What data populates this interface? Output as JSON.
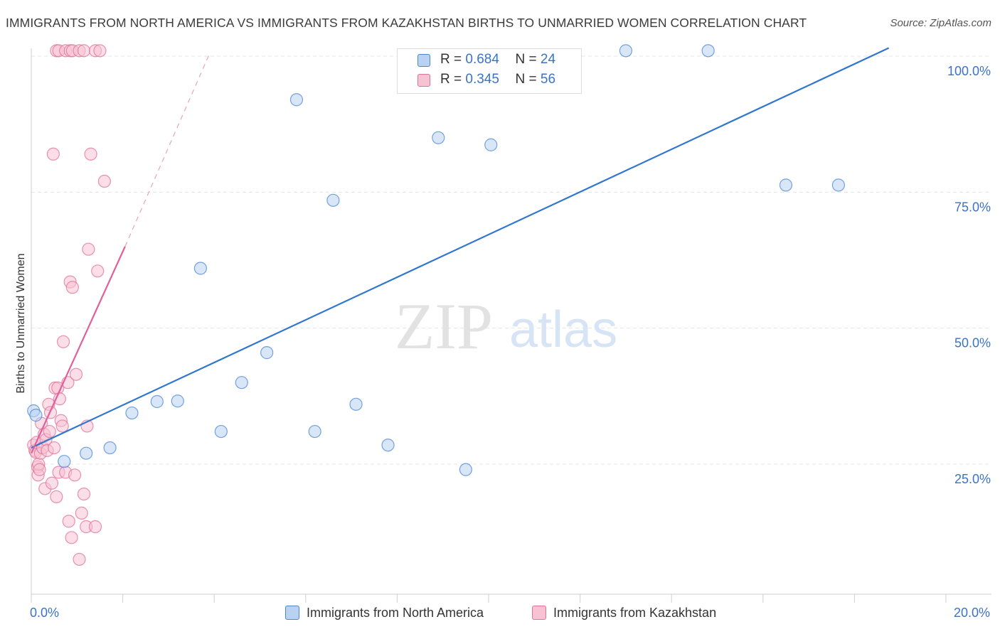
{
  "chart_data": {
    "type": "scatter",
    "title": "IMMIGRANTS FROM NORTH AMERICA VS IMMIGRANTS FROM KAZAKHSTAN BIRTHS TO UNMARRIED WOMEN CORRELATION CHART",
    "source": "Source: ZipAtlas.com",
    "xlabel": "",
    "ylabel": "Births to Unmarried Women",
    "xlim": [
      0,
      20
    ],
    "ylim": [
      0,
      102
    ],
    "x_tick_labels": {
      "min": "0.0%",
      "max": "20.0%"
    },
    "y_ticks": [
      {
        "value": 25,
        "label": "25.0%"
      },
      {
        "value": 50,
        "label": "50.0%"
      },
      {
        "value": 75,
        "label": "75.0%"
      },
      {
        "value": 100,
        "label": "100.0%"
      }
    ],
    "grid": true,
    "watermark": {
      "part1": "ZIP",
      "part2": "atlas"
    },
    "legend_position": "top-center",
    "series": [
      {
        "name": "Immigrants from North America",
        "color": "#4a86d6",
        "fill": "#b9d2f3",
        "r_label": "R =",
        "r_value": "0.684",
        "n_label": "N =",
        "n_value": "24",
        "points": [
          {
            "x": 0.05,
            "y": 34.8
          },
          {
            "x": 0.1,
            "y": 34.0
          },
          {
            "x": 0.72,
            "y": 25.5
          },
          {
            "x": 1.2,
            "y": 27.0
          },
          {
            "x": 1.72,
            "y": 28.0
          },
          {
            "x": 2.2,
            "y": 34.4
          },
          {
            "x": 2.75,
            "y": 36.5
          },
          {
            "x": 3.2,
            "y": 36.6
          },
          {
            "x": 3.7,
            "y": 61.0
          },
          {
            "x": 4.15,
            "y": 31.0
          },
          {
            "x": 4.6,
            "y": 40.0
          },
          {
            "x": 5.15,
            "y": 45.5
          },
          {
            "x": 5.8,
            "y": 92.0
          },
          {
            "x": 6.2,
            "y": 31.0
          },
          {
            "x": 6.6,
            "y": 73.5
          },
          {
            "x": 7.1,
            "y": 36.0
          },
          {
            "x": 7.8,
            "y": 28.5
          },
          {
            "x": 8.9,
            "y": 85.0
          },
          {
            "x": 9.5,
            "y": 24.0
          },
          {
            "x": 10.05,
            "y": 83.7
          },
          {
            "x": 13.0,
            "y": 101.0
          },
          {
            "x": 14.8,
            "y": 101.0
          },
          {
            "x": 16.5,
            "y": 76.3
          },
          {
            "x": 17.65,
            "y": 76.3
          }
        ],
        "trend": {
          "x1": 0.0,
          "y1": 28.0,
          "x2": 18.75,
          "y2": 101.5
        }
      },
      {
        "name": "Immigrants from Kazakhstan",
        "color": "#e0709a",
        "fill": "#f7c3d3",
        "r_label": "R =",
        "r_value": "0.345",
        "n_label": "N =",
        "n_value": "56",
        "points": [
          {
            "x": 0.05,
            "y": 28.5
          },
          {
            "x": 0.08,
            "y": 27.5
          },
          {
            "x": 0.1,
            "y": 27.2
          },
          {
            "x": 0.12,
            "y": 29.0
          },
          {
            "x": 0.14,
            "y": 24.5
          },
          {
            "x": 0.15,
            "y": 23.0
          },
          {
            "x": 0.16,
            "y": 25.0
          },
          {
            "x": 0.18,
            "y": 24.0
          },
          {
            "x": 0.2,
            "y": 27.0
          },
          {
            "x": 0.22,
            "y": 32.5
          },
          {
            "x": 0.25,
            "y": 28.0
          },
          {
            "x": 0.28,
            "y": 30.5
          },
          {
            "x": 0.3,
            "y": 20.5
          },
          {
            "x": 0.32,
            "y": 29.5
          },
          {
            "x": 0.35,
            "y": 27.5
          },
          {
            "x": 0.38,
            "y": 36.0
          },
          {
            "x": 0.4,
            "y": 31.0
          },
          {
            "x": 0.42,
            "y": 34.5
          },
          {
            "x": 0.45,
            "y": 21.5
          },
          {
            "x": 0.48,
            "y": 82.0
          },
          {
            "x": 0.5,
            "y": 28.0
          },
          {
            "x": 0.52,
            "y": 39.0
          },
          {
            "x": 0.55,
            "y": 19.0
          },
          {
            "x": 0.58,
            "y": 39.0
          },
          {
            "x": 0.6,
            "y": 23.5
          },
          {
            "x": 0.62,
            "y": 37.0
          },
          {
            "x": 0.65,
            "y": 33.0
          },
          {
            "x": 0.68,
            "y": 32.0
          },
          {
            "x": 0.7,
            "y": 47.5
          },
          {
            "x": 0.75,
            "y": 23.5
          },
          {
            "x": 0.8,
            "y": 40.0
          },
          {
            "x": 0.82,
            "y": 14.5
          },
          {
            "x": 0.85,
            "y": 58.5
          },
          {
            "x": 0.88,
            "y": 11.5
          },
          {
            "x": 0.9,
            "y": 57.5
          },
          {
            "x": 0.95,
            "y": 23.0
          },
          {
            "x": 0.98,
            "y": 41.5
          },
          {
            "x": 0.55,
            "y": 101.0
          },
          {
            "x": 0.6,
            "y": 101.0
          },
          {
            "x": 0.75,
            "y": 101.0
          },
          {
            "x": 0.85,
            "y": 101.0
          },
          {
            "x": 0.9,
            "y": 101.0
          },
          {
            "x": 1.05,
            "y": 101.0
          },
          {
            "x": 1.15,
            "y": 101.0
          },
          {
            "x": 1.4,
            "y": 101.0
          },
          {
            "x": 1.5,
            "y": 101.0
          },
          {
            "x": 1.05,
            "y": 7.5
          },
          {
            "x": 1.1,
            "y": 16.0
          },
          {
            "x": 1.15,
            "y": 19.5
          },
          {
            "x": 1.2,
            "y": 13.5
          },
          {
            "x": 1.22,
            "y": 32.0
          },
          {
            "x": 1.25,
            "y": 64.5
          },
          {
            "x": 1.3,
            "y": 82.0
          },
          {
            "x": 1.4,
            "y": 13.5
          },
          {
            "x": 1.45,
            "y": 60.5
          },
          {
            "x": 1.6,
            "y": 77.0
          }
        ],
        "trend": {
          "x1": 0.0,
          "y1": 27.0,
          "x2": 2.05,
          "y2": 65.0
        },
        "trend_extension": {
          "x1": 2.05,
          "y1": 65.0,
          "x2": 3.9,
          "y2": 100.5
        }
      }
    ]
  }
}
